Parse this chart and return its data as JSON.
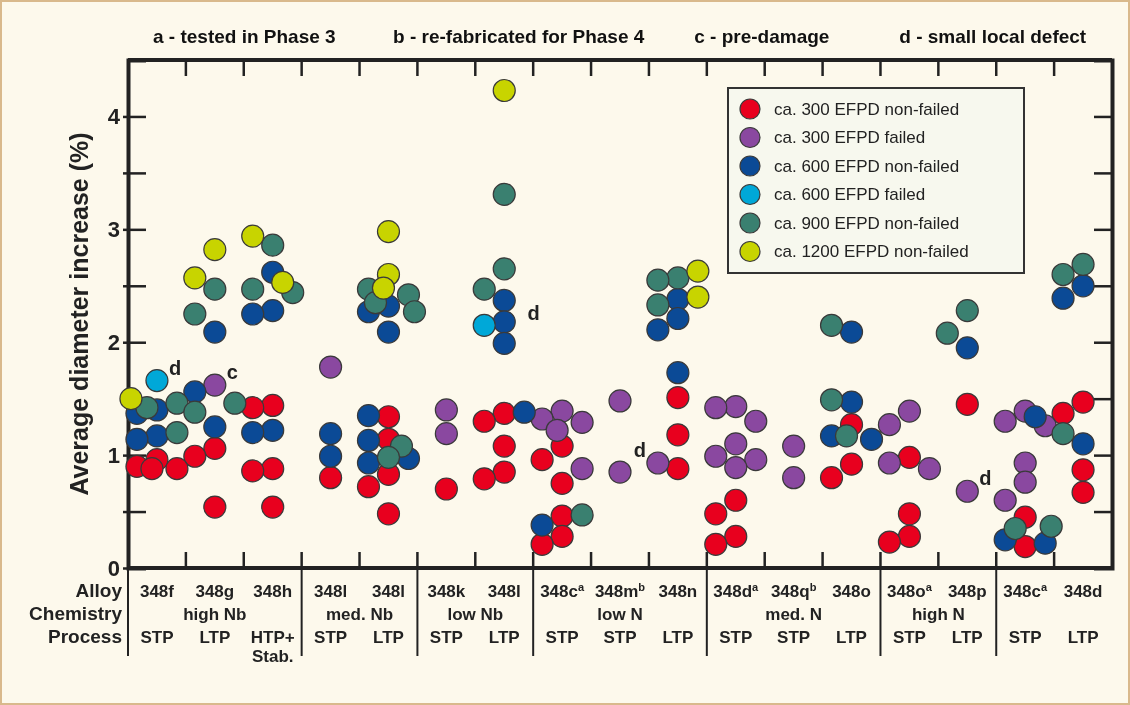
{
  "chart_data": {
    "type": "scatter",
    "ylabel": "Average diameter increase (%)",
    "annotations": [
      "a - tested in Phase 3",
      "b - re-fabricated for Phase 4",
      "c - pre-damage",
      "d - small local defect",
      "Alloy",
      "Chemistry",
      "Process",
      "high Nb",
      "med. Nb",
      "low Nb",
      "low N",
      "med. N",
      "high N",
      "STP",
      "LTP",
      "HTP+\nStab.",
      "STP",
      "LTP",
      "STP",
      "LTP",
      "STP",
      "STP",
      "LTP",
      "STP",
      "STP",
      "LTP",
      "STP",
      "LTP",
      "STP",
      "LTP",
      {
        "text": "d",
        "x": "348f",
        "y": 1.66
      },
      {
        "text": "c",
        "x": "348g",
        "y": 1.62
      },
      "d",
      {
        "text": "d",
        "x": "348n",
        "y": 0.93
      },
      {
        "text": "d",
        "x": "348p",
        "y": 0.68
      }
    ],
    "categories": [
      "348f",
      "348g",
      "348h",
      "348l",
      "348l",
      "348k",
      "348l",
      "348c$^{a}$",
      "348m$^{b}$",
      "348n",
      "348d$^{a}$",
      "348q$^{b}$",
      "348o",
      "348o$^{a}$",
      "348p",
      "348c$^{a}$",
      "348d"
    ],
    "ylim": [
      0,
      4.5
    ],
    "yticks": [
      0,
      {
        "value": 0.5,
        "label": null
      },
      1,
      {
        "value": 1.5,
        "label": null
      },
      2,
      {
        "value": 2.5,
        "label": null
      },
      3,
      {
        "value": 3.5,
        "label": null
      },
      4
    ],
    "grid": false,
    "legend": "top right",
    "marker": "circle",
    "series": [
      {
        "name": "ca. 300 EFPD non-failed",
        "color": "#e8001e",
        "values": [
          0.96,
          1.06,
          1.44,
          0.8,
          1.34,
          0.7,
          1.37,
          1.08,
          null,
          1.51,
          0.6,
          null,
          1.27,
          0.98,
          1.45,
          0.45,
          1.47
        ]
      },
      {
        "color": "#e8001e",
        "values": [
          0.9,
          0.99,
          1.42,
          null,
          1.14,
          null,
          1.3,
          0.96,
          null,
          1.18,
          0.48,
          null,
          0.92,
          0.48,
          null,
          0.19,
          1.37
        ]
      },
      {
        "color": "#e8001e",
        "values": [
          0.88,
          0.54,
          0.88,
          null,
          0.83,
          null,
          1.08,
          0.75,
          null,
          0.88,
          0.28,
          null,
          0.8,
          0.28,
          null,
          null,
          0.87
        ]
      },
      {
        "color": "#e8001e",
        "values": [
          0.88,
          null,
          0.86,
          null,
          0.72,
          null,
          0.85,
          0.46,
          null,
          null,
          0.21,
          null,
          null,
          0.23,
          null,
          null,
          0.67
        ]
      },
      {
        "color": "#e8001e",
        "values": [
          null,
          null,
          0.54,
          null,
          0.48,
          null,
          0.79,
          0.28,
          null,
          null,
          null,
          null,
          null,
          null,
          null,
          null,
          null
        ]
      },
      {
        "color": "#e8001e",
        "values": [
          null,
          null,
          null,
          null,
          null,
          null,
          null,
          0.21,
          null,
          null,
          null,
          null,
          null,
          null,
          null,
          null,
          null
        ]
      },
      {
        "name": "ca. 300 EFPD failed",
        "color": "#8a48a0",
        "values": [
          null,
          1.62,
          null,
          1.78,
          null,
          1.4,
          null,
          1.39,
          1.48,
          0.93,
          1.43,
          1.08,
          null,
          1.39,
          0.68,
          1.39,
          null
        ]
      },
      {
        "color": "#8a48a0",
        "values": [
          null,
          null,
          null,
          null,
          null,
          1.19,
          null,
          1.32,
          0.85,
          null,
          1.42,
          0.8,
          null,
          1.27,
          null,
          1.3,
          null
        ]
      },
      {
        "color": "#8a48a0",
        "values": [
          null,
          null,
          null,
          null,
          null,
          null,
          null,
          1.29,
          null,
          null,
          1.3,
          null,
          null,
          0.93,
          null,
          1.26,
          null
        ]
      },
      {
        "color": "#8a48a0",
        "values": [
          null,
          null,
          null,
          null,
          null,
          null,
          null,
          1.22,
          null,
          null,
          1.1,
          null,
          null,
          0.88,
          null,
          0.93,
          null
        ]
      },
      {
        "color": "#8a48a0",
        "values": [
          null,
          null,
          null,
          null,
          null,
          null,
          null,
          0.88,
          null,
          null,
          0.99,
          null,
          null,
          null,
          null,
          0.76,
          null
        ]
      },
      {
        "color": "#8a48a0",
        "values": [
          null,
          null,
          null,
          null,
          null,
          null,
          null,
          null,
          null,
          null,
          0.96,
          null,
          null,
          null,
          null,
          0.6,
          null
        ]
      },
      {
        "color": "#8a48a0",
        "values": [
          null,
          null,
          null,
          null,
          null,
          null,
          null,
          null,
          null,
          null,
          0.89,
          null,
          null,
          null,
          null,
          null,
          null
        ]
      },
      {
        "name": "ca. 600 EFPD non-failed",
        "color": "#0b4a96",
        "values": [
          1.4,
          2.09,
          2.62,
          1.19,
          2.32,
          null,
          2.37,
          0.38,
          null,
          2.38,
          null,
          null,
          2.09,
          null,
          1.95,
          1.34,
          2.5
        ]
      },
      {
        "color": "#0b4a96",
        "values": [
          1.37,
          1.56,
          2.28,
          0.99,
          2.27,
          null,
          2.18,
          null,
          null,
          2.21,
          null,
          null,
          1.47,
          null,
          null,
          0.25,
          2.39
        ]
      },
      {
        "color": "#0b4a96",
        "values": [
          1.17,
          1.25,
          2.25,
          null,
          2.09,
          null,
          1.99,
          null,
          null,
          2.11,
          null,
          null,
          1.17,
          null,
          null,
          0.22,
          1.1
        ]
      },
      {
        "color": "#0b4a96",
        "values": [
          1.14,
          null,
          1.22,
          null,
          1.35,
          null,
          1.38,
          null,
          null,
          1.73,
          null,
          null,
          1.14,
          null,
          null,
          null,
          null
        ]
      },
      {
        "color": "#0b4a96",
        "values": [
          null,
          null,
          1.2,
          null,
          1.13,
          null,
          null,
          null,
          null,
          null,
          null,
          null,
          null,
          null,
          null,
          null,
          null
        ]
      },
      {
        "color": "#0b4a96",
        "values": [
          null,
          null,
          null,
          null,
          0.97,
          null,
          null,
          null,
          null,
          null,
          null,
          null,
          null,
          null,
          null,
          null,
          null
        ]
      },
      {
        "color": "#0b4a96",
        "values": [
          null,
          null,
          null,
          null,
          0.93,
          null,
          null,
          null,
          null,
          null,
          null,
          null,
          null,
          null,
          null,
          null,
          null
        ]
      },
      {
        "name": "ca. 600 EFPD failed",
        "color": "#00a8d8",
        "values": [
          1.66,
          null,
          null,
          null,
          null,
          null,
          2.15,
          null,
          null,
          null,
          null,
          null,
          null,
          null,
          null,
          null,
          null
        ]
      },
      {
        "name": "ca. 900 EFPD non-failed",
        "color": "#3a8070",
        "values": [
          1.46,
          2.47,
          2.86,
          null,
          2.47,
          null,
          3.31,
          0.47,
          null,
          2.57,
          null,
          null,
          2.15,
          null,
          2.28,
          0.37,
          2.69
        ]
      },
      {
        "color": "#3a8070",
        "values": [
          1.42,
          2.25,
          2.47,
          null,
          2.42,
          null,
          2.65,
          null,
          null,
          2.55,
          null,
          null,
          1.49,
          null,
          2.08,
          0.35,
          2.6
        ]
      },
      {
        "color": "#3a8070",
        "values": [
          1.2,
          1.46,
          2.44,
          null,
          2.35,
          null,
          2.47,
          null,
          null,
          2.33,
          null,
          null,
          1.17,
          null,
          null,
          null,
          1.19
        ]
      },
      {
        "color": "#3a8070",
        "values": [
          null,
          1.38,
          null,
          null,
          2.27,
          null,
          null,
          null,
          null,
          null,
          null,
          null,
          null,
          null,
          null,
          null,
          null
        ]
      },
      {
        "color": "#3a8070",
        "values": [
          null,
          null,
          null,
          null,
          1.08,
          null,
          null,
          null,
          null,
          null,
          null,
          null,
          null,
          null,
          null,
          null,
          null
        ]
      },
      {
        "color": "#3a8070",
        "values": [
          null,
          null,
          null,
          null,
          0.98,
          null,
          null,
          null,
          null,
          null,
          null,
          null,
          null,
          null,
          null,
          null,
          null
        ]
      },
      {
        "name": "ca. 1200 EFPD non-failed",
        "color": "#c8d400",
        "values": [
          1.5,
          2.82,
          2.94,
          null,
          2.98,
          null,
          4.23,
          null,
          null,
          2.63,
          null,
          null,
          null,
          null,
          null,
          null,
          null
        ]
      },
      {
        "color": "#c8d400",
        "values": [
          null,
          2.57,
          2.53,
          null,
          2.6,
          null,
          null,
          null,
          null,
          2.4,
          null,
          null,
          null,
          null,
          null,
          null,
          null
        ]
      },
      {
        "color": "#c8d400",
        "values": [
          null,
          null,
          null,
          null,
          2.48,
          null,
          null,
          null,
          null,
          null,
          null,
          null,
          null,
          null,
          null,
          null,
          null
        ]
      }
    ]
  }
}
